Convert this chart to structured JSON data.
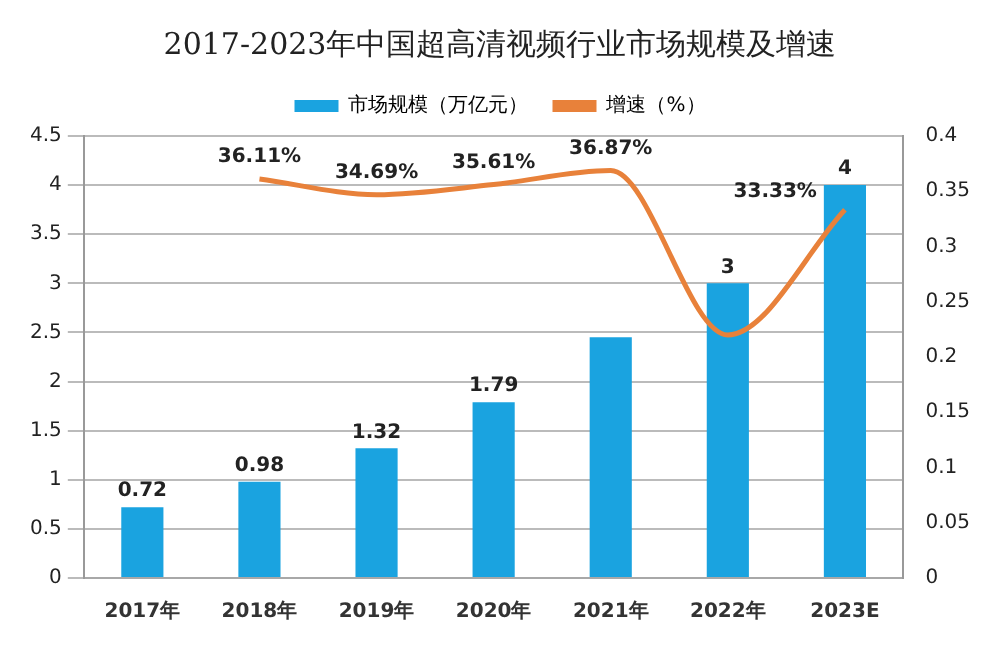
{
  "chart_data": {
    "type": "bar",
    "title": "2017-2023年中国超高清视频行业市场规模及增速",
    "categories": [
      "2017年",
      "2018年",
      "2019年",
      "2020年",
      "2021年",
      "2022年",
      "2023E"
    ],
    "series": [
      {
        "name": "市场规模（万亿元）",
        "color": "#1aa3e0",
        "values": [
          0.72,
          0.98,
          1.32,
          1.79,
          2.45,
          3,
          4
        ],
        "value_labels": [
          "0.72",
          "0.98",
          "1.32",
          "1.79",
          null,
          "3",
          "4"
        ]
      },
      {
        "name": "增速（%）",
        "type": "line",
        "axis": "y2",
        "color": "#e8813a",
        "values": [
          null,
          0.3611,
          0.3469,
          0.3561,
          0.3687,
          0.22,
          0.3333
        ],
        "value_labels": [
          null,
          "36.11%",
          "34.69%",
          "35.61%",
          "36.87%",
          null,
          "33.33%"
        ]
      }
    ],
    "ylim": [
      0,
      4.5
    ],
    "yticks": [
      0,
      0.5,
      1,
      1.5,
      2,
      2.5,
      3,
      3.5,
      4,
      4.5
    ],
    "y2lim": [
      0,
      0.4
    ],
    "y2ticks": [
      0,
      0.05,
      0.1,
      0.15,
      0.2,
      0.25,
      0.3,
      0.35,
      0.4
    ],
    "grid": "y",
    "legend": "top",
    "marker": "none"
  }
}
